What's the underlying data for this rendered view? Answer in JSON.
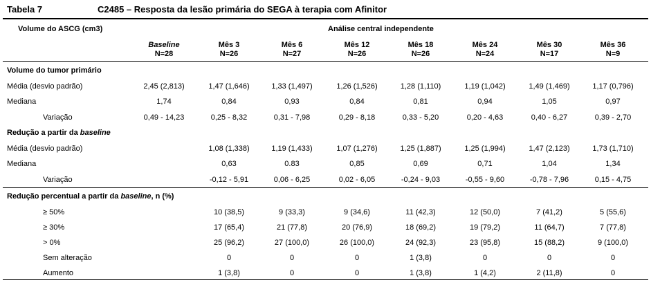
{
  "table": {
    "label": "Tabela 7",
    "title": "C2485 – Resposta da lesão primária do SEGA à terapia com Afinitor",
    "stub_header": "Volume do ASCG (cm3)",
    "group_header": "Análise central independente",
    "columns": [
      {
        "name": "Baseline",
        "n": "N=28"
      },
      {
        "name": "Mês 3",
        "n": "N=26"
      },
      {
        "name": "Mês 6",
        "n": "N=27"
      },
      {
        "name": "Mês 12",
        "n": "N=26"
      },
      {
        "name": "Mês 18",
        "n": "N=26"
      },
      {
        "name": "Mês 24",
        "n": "N=24"
      },
      {
        "name": "Mês 30",
        "n": "N=17"
      },
      {
        "name": "Mês 36",
        "n": "N=9"
      }
    ],
    "section1": {
      "title": "Volume do tumor primário",
      "rows": [
        {
          "label": "Média (desvio padrão)",
          "values": [
            "2,45 (2,813)",
            "1,47 (1,646)",
            "1,33 (1,497)",
            "1,26 (1,526)",
            "1,28 (1,110)",
            "1,19 (1,042)",
            "1,49 (1,469)",
            "1,17 (0,796)"
          ]
        },
        {
          "label": "Mediana",
          "values": [
            "1,74",
            "0,84",
            "0,93",
            "0,84",
            "0,81",
            "0,94",
            "1,05",
            "0,97"
          ]
        },
        {
          "label": "Variação",
          "values": [
            "0,49 - 14,23",
            "0,25 - 8,32",
            "0,31 - 7,98",
            "0,29 - 8,18",
            "0,33 - 5,20",
            "0,20 - 4,63",
            "0,40 - 6,27",
            "0,39 - 2,70"
          ]
        }
      ]
    },
    "section2": {
      "title_prefix": "Redução a partir da ",
      "title_italic": "baseline",
      "rows": [
        {
          "label": "Média (desvio padrão)",
          "values": [
            "",
            "1,08 (1,338)",
            "1,19 (1,433)",
            "1,07 (1,276)",
            "1,25 (1,887)",
            "1,25 (1,994)",
            "1,47 (2,123)",
            "1,73 (1,710)"
          ]
        },
        {
          "label": "Mediana",
          "values": [
            "",
            "0,63",
            "0.83",
            "0,85",
            "0,69",
            "0,71",
            "1,04",
            "1,34"
          ]
        },
        {
          "label": "Variação",
          "values": [
            "",
            "-0,12 - 5,91",
            "0,06 - 6,25",
            "0,02 - 6,05",
            "-0,24 - 9,03",
            "-0,55 - 9,60",
            "-0,78 - 7,96",
            "0,15 - 4,75"
          ]
        }
      ]
    },
    "section3": {
      "title_prefix": "Redução percentual a partir da ",
      "title_italic": "baseline",
      "title_suffix": ", n (%)",
      "rows": [
        {
          "label": "≥ 50%",
          "values": [
            "",
            "10 (38,5)",
            "9 (33,3)",
            "9 (34,6)",
            "11 (42,3)",
            "12 (50,0)",
            "7 (41,2)",
            "5 (55,6)"
          ]
        },
        {
          "label": "≥ 30%",
          "values": [
            "",
            "17 (65,4)",
            "21 (77,8)",
            "20 (76,9)",
            "18 (69,2)",
            "19 (79,2)",
            "11 (64,7)",
            "7 (77,8)"
          ]
        },
        {
          "label": "> 0%",
          "values": [
            "",
            "25 (96,2)",
            "27 (100,0)",
            "26 (100,0)",
            "24 (92,3)",
            "23 (95,8)",
            "15 (88,2)",
            "9 (100,0)"
          ]
        },
        {
          "label": "Sem alteração",
          "values": [
            "",
            "0",
            "0",
            "0",
            "1 (3,8)",
            "0",
            "0",
            "0"
          ]
        },
        {
          "label": "Aumento",
          "values": [
            "",
            "1 (3,8)",
            "0",
            "0",
            "1 (3,8)",
            "1 (4,2)",
            "2 (11,8)",
            "0"
          ]
        }
      ]
    }
  }
}
